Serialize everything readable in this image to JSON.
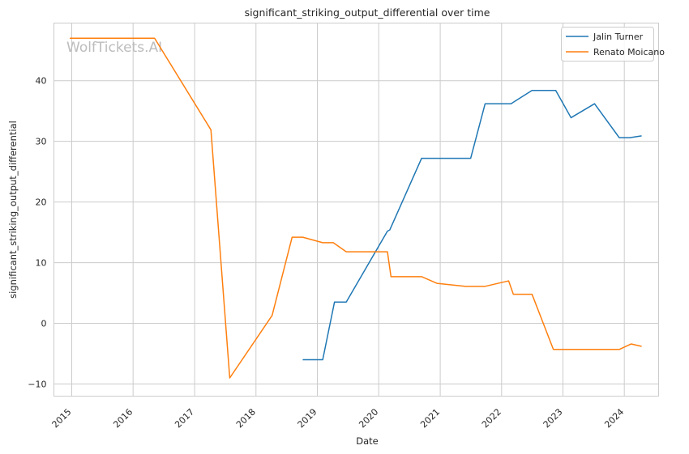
{
  "chart_data": {
    "type": "line",
    "title": "significant_striking_output_differential over time",
    "xlabel": "Date",
    "ylabel": "significant_striking_output_differential",
    "watermark": "WolfTickets.AI",
    "grid": true,
    "legend_position": "top-right",
    "ylim": [
      -12,
      49.5
    ],
    "xlim": [
      "2014-09-17",
      "2024-07-23"
    ],
    "x_ticks": [
      "2015",
      "2016",
      "2017",
      "2018",
      "2019",
      "2020",
      "2021",
      "2022",
      "2023",
      "2024"
    ],
    "y_ticks": [
      -10,
      0,
      10,
      20,
      30,
      40
    ],
    "series": [
      {
        "name": "Jalin Turner",
        "color": "#1f77b4",
        "points": [
          [
            "2018-10-06",
            -6.0
          ],
          [
            "2019-02-02",
            -6.0
          ],
          [
            "2019-04-13",
            3.5
          ],
          [
            "2019-06-22",
            3.5
          ],
          [
            "2020-02-22",
            15.2
          ],
          [
            "2020-03-07",
            15.4
          ],
          [
            "2020-09-12",
            27.2
          ],
          [
            "2021-07-01",
            27.2
          ],
          [
            "2021-09-25",
            36.2
          ],
          [
            "2022-02-26",
            36.2
          ],
          [
            "2022-07-01",
            38.4
          ],
          [
            "2022-11-19",
            38.4
          ],
          [
            "2023-02-18",
            33.9
          ],
          [
            "2023-07-08",
            36.2
          ],
          [
            "2023-12-02",
            30.6
          ],
          [
            "2024-02-03",
            30.6
          ],
          [
            "2024-04-13",
            30.9
          ]
        ]
      },
      {
        "name": "Renato Moicano",
        "color": "#ff7f0e",
        "points": [
          [
            "2014-12-20",
            47.0
          ],
          [
            "2016-05-08",
            47.0
          ],
          [
            "2017-04-08",
            31.9
          ],
          [
            "2017-07-29",
            -9.0
          ],
          [
            "2018-04-07",
            1.3
          ],
          [
            "2018-08-04",
            14.2
          ],
          [
            "2018-10-06",
            14.2
          ],
          [
            "2019-02-02",
            13.3
          ],
          [
            "2019-04-06",
            13.3
          ],
          [
            "2019-06-22",
            11.8
          ],
          [
            "2020-02-22",
            11.8
          ],
          [
            "2020-03-14",
            7.7
          ],
          [
            "2020-09-12",
            7.7
          ],
          [
            "2020-12-12",
            6.6
          ],
          [
            "2021-06-01",
            6.1
          ],
          [
            "2021-09-25",
            6.1
          ],
          [
            "2022-02-12",
            7.0
          ],
          [
            "2022-03-12",
            4.8
          ],
          [
            "2022-07-01",
            4.8
          ],
          [
            "2022-11-05",
            -4.3
          ],
          [
            "2023-12-02",
            -4.3
          ],
          [
            "2024-02-10",
            -3.4
          ],
          [
            "2024-04-13",
            -3.8
          ]
        ]
      }
    ]
  }
}
